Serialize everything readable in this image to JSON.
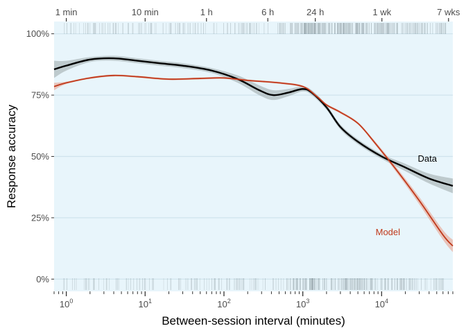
{
  "chart_data": {
    "type": "line",
    "xlabel": "Between-session interval (minutes)",
    "ylabel": "Response accuracy",
    "x_scale": "log10",
    "xlim": [
      0.7,
      80000
    ],
    "ylim": [
      -0.05,
      1.05
    ],
    "grid": "horizontal",
    "legend": "inline labels at right",
    "panel_background": "#e8f5fb",
    "y_ticks": [
      {
        "value": 0,
        "label": "0%"
      },
      {
        "value": 0.25,
        "label": "25%"
      },
      {
        "value": 0.5,
        "label": "50%"
      },
      {
        "value": 0.75,
        "label": "75%"
      },
      {
        "value": 1.0,
        "label": "100%"
      }
    ],
    "x_ticks": [
      {
        "value": 1,
        "base": "10",
        "exp": "0"
      },
      {
        "value": 10,
        "base": "10",
        "exp": "1"
      },
      {
        "value": 100,
        "base": "10",
        "exp": "2"
      },
      {
        "value": 1000,
        "base": "10",
        "exp": "3"
      },
      {
        "value": 10000,
        "base": "10",
        "exp": "4"
      }
    ],
    "top_axis_ticks": [
      {
        "value": 1,
        "label": "1 min"
      },
      {
        "value": 10,
        "label": "10 min"
      },
      {
        "value": 60,
        "label": "1 h"
      },
      {
        "value": 360,
        "label": "6 h"
      },
      {
        "value": 1440,
        "label": "24 h"
      },
      {
        "value": 10080,
        "label": "1 wk"
      },
      {
        "value": 70560,
        "label": "7 wks"
      }
    ],
    "series": [
      {
        "name": "Data",
        "color": "#000000",
        "band_color": "#9aa5a8",
        "label_at": {
          "x": 38000,
          "y": 0.49
        },
        "points": [
          {
            "x": 0.7,
            "y": 0.855,
            "lo": 0.82,
            "hi": 0.89
          },
          {
            "x": 1,
            "y": 0.87,
            "lo": 0.85,
            "hi": 0.89
          },
          {
            "x": 2,
            "y": 0.895,
            "lo": 0.885,
            "hi": 0.905
          },
          {
            "x": 4,
            "y": 0.9,
            "lo": 0.89,
            "hi": 0.91
          },
          {
            "x": 8,
            "y": 0.89,
            "lo": 0.88,
            "hi": 0.9
          },
          {
            "x": 15,
            "y": 0.88,
            "lo": 0.87,
            "hi": 0.89
          },
          {
            "x": 30,
            "y": 0.87,
            "lo": 0.86,
            "hi": 0.88
          },
          {
            "x": 70,
            "y": 0.85,
            "lo": 0.84,
            "hi": 0.86
          },
          {
            "x": 150,
            "y": 0.815,
            "lo": 0.8,
            "hi": 0.83
          },
          {
            "x": 280,
            "y": 0.77,
            "lo": 0.75,
            "hi": 0.79
          },
          {
            "x": 420,
            "y": 0.75,
            "lo": 0.73,
            "hi": 0.77
          },
          {
            "x": 650,
            "y": 0.76,
            "lo": 0.745,
            "hi": 0.775
          },
          {
            "x": 1000,
            "y": 0.775,
            "lo": 0.765,
            "hi": 0.785
          },
          {
            "x": 1300,
            "y": 0.76,
            "lo": 0.75,
            "hi": 0.77
          },
          {
            "x": 2000,
            "y": 0.7,
            "lo": 0.69,
            "hi": 0.71
          },
          {
            "x": 3000,
            "y": 0.62,
            "lo": 0.61,
            "hi": 0.63
          },
          {
            "x": 5000,
            "y": 0.56,
            "lo": 0.55,
            "hi": 0.57
          },
          {
            "x": 10000,
            "y": 0.5,
            "lo": 0.49,
            "hi": 0.51
          },
          {
            "x": 20000,
            "y": 0.455,
            "lo": 0.44,
            "hi": 0.47
          },
          {
            "x": 40000,
            "y": 0.41,
            "lo": 0.39,
            "hi": 0.43
          },
          {
            "x": 80000,
            "y": 0.38,
            "lo": 0.35,
            "hi": 0.41
          }
        ]
      },
      {
        "name": "Model",
        "color": "#c0391b",
        "band_color": "#e89a86",
        "label_at": {
          "x": 12000,
          "y": 0.19
        },
        "points": [
          {
            "x": 0.7,
            "y": 0.785,
            "lo": 0.77,
            "hi": 0.8
          },
          {
            "x": 1,
            "y": 0.8,
            "lo": 0.795,
            "hi": 0.805
          },
          {
            "x": 2,
            "y": 0.82,
            "lo": 0.816,
            "hi": 0.824
          },
          {
            "x": 4,
            "y": 0.83,
            "lo": 0.826,
            "hi": 0.834
          },
          {
            "x": 8,
            "y": 0.825,
            "lo": 0.821,
            "hi": 0.829
          },
          {
            "x": 20,
            "y": 0.815,
            "lo": 0.811,
            "hi": 0.819
          },
          {
            "x": 50,
            "y": 0.818,
            "lo": 0.814,
            "hi": 0.822
          },
          {
            "x": 100,
            "y": 0.82,
            "lo": 0.816,
            "hi": 0.824
          },
          {
            "x": 200,
            "y": 0.81,
            "lo": 0.806,
            "hi": 0.814
          },
          {
            "x": 500,
            "y": 0.8,
            "lo": 0.796,
            "hi": 0.804
          },
          {
            "x": 1000,
            "y": 0.785,
            "lo": 0.781,
            "hi": 0.789
          },
          {
            "x": 1500,
            "y": 0.745,
            "lo": 0.741,
            "hi": 0.749
          },
          {
            "x": 2000,
            "y": 0.71,
            "lo": 0.705,
            "hi": 0.715
          },
          {
            "x": 3000,
            "y": 0.68,
            "lo": 0.675,
            "hi": 0.685
          },
          {
            "x": 5000,
            "y": 0.635,
            "lo": 0.63,
            "hi": 0.64
          },
          {
            "x": 8000,
            "y": 0.56,
            "lo": 0.553,
            "hi": 0.567
          },
          {
            "x": 15000,
            "y": 0.45,
            "lo": 0.44,
            "hi": 0.46
          },
          {
            "x": 30000,
            "y": 0.32,
            "lo": 0.305,
            "hi": 0.335
          },
          {
            "x": 60000,
            "y": 0.18,
            "lo": 0.16,
            "hi": 0.2
          },
          {
            "x": 80000,
            "y": 0.135,
            "lo": 0.11,
            "hi": 0.16
          }
        ]
      }
    ]
  }
}
